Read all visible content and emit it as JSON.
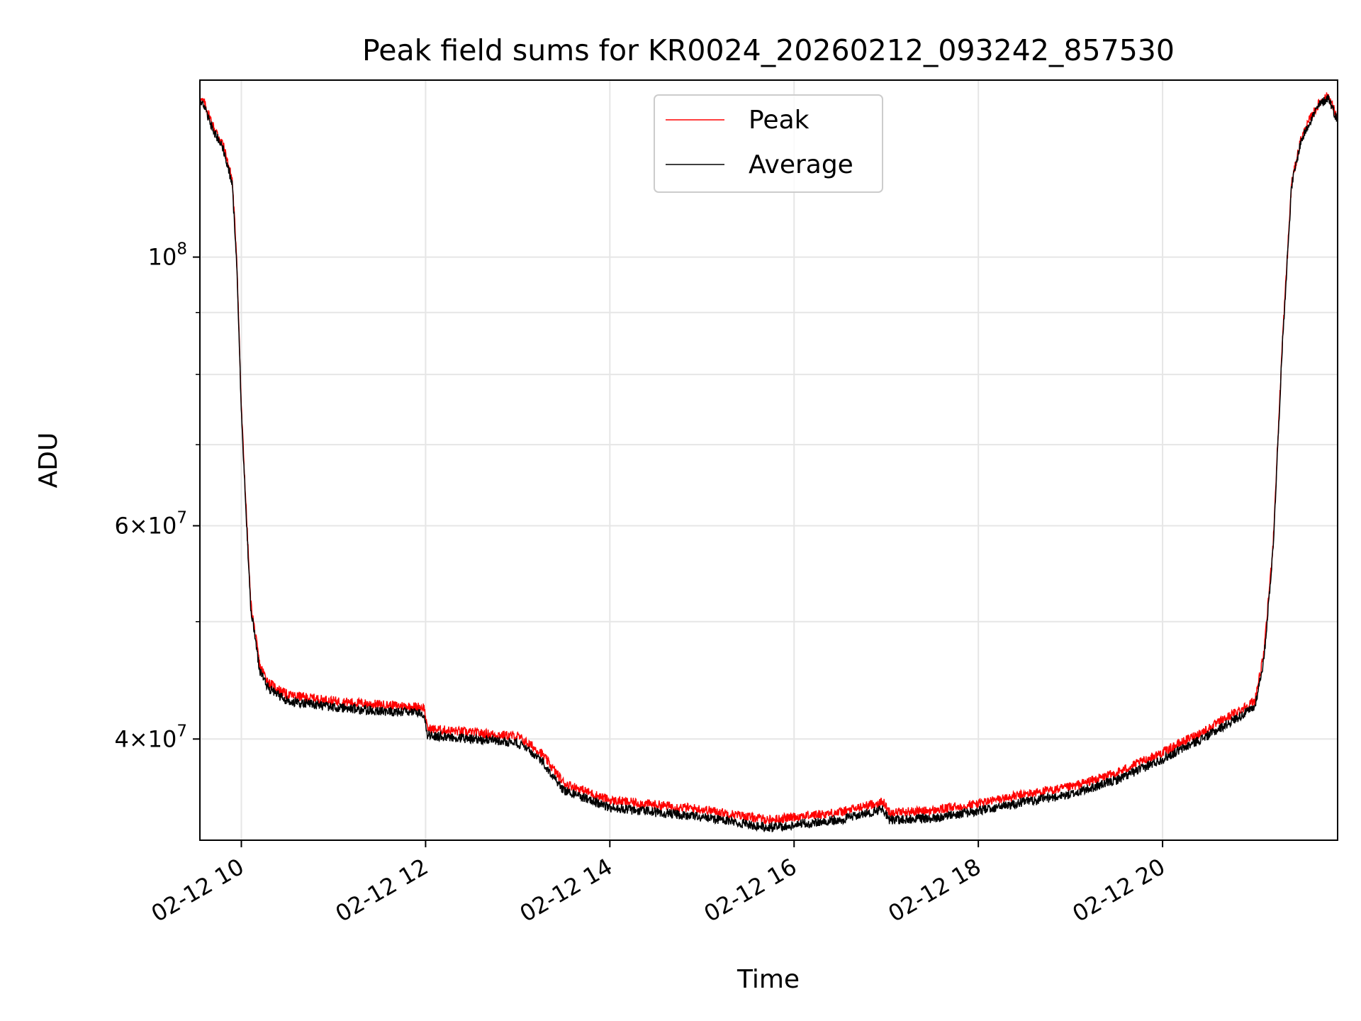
{
  "chart_data": {
    "type": "line",
    "title": "Peak field sums for KR0024_20260212_093242_857530",
    "xlabel": "Time",
    "ylabel": "ADU",
    "yscale": "log",
    "grid": true,
    "legend_position": "top-center",
    "xlim": [
      "2026-02-12 09:33",
      "2026-02-12 21:54"
    ],
    "ylim": [
      33000000,
      140000000
    ],
    "x_ticks": [
      "02-12 10",
      "02-12 12",
      "02-12 14",
      "02-12 16",
      "02-12 18",
      "02-12 20"
    ],
    "y_ticks": [
      {
        "value": 100000000,
        "base": "10",
        "exp": "8",
        "label": "10^8"
      },
      {
        "value": 60000000,
        "coef": "6",
        "base": "10",
        "exp": "7",
        "label": "6×10^7"
      },
      {
        "value": 40000000,
        "coef": "4",
        "base": "10",
        "exp": "7",
        "label": "4×10^7"
      }
    ],
    "y_minor_ticks": [
      50000000,
      70000000,
      80000000,
      90000000
    ],
    "x": [
      "2026-02-12 09:33",
      "2026-02-12 09:36",
      "2026-02-12 09:42",
      "2026-02-12 09:48",
      "2026-02-12 09:54",
      "2026-02-12 09:57",
      "2026-02-12 10:00",
      "2026-02-12 10:06",
      "2026-02-12 10:12",
      "2026-02-12 10:18",
      "2026-02-12 10:24",
      "2026-02-12 10:30",
      "2026-02-12 11:00",
      "2026-02-12 11:30",
      "2026-02-12 11:59",
      "2026-02-12 12:01",
      "2026-02-12 12:30",
      "2026-02-12 13:00",
      "2026-02-12 13:15",
      "2026-02-12 13:30",
      "2026-02-12 14:00",
      "2026-02-12 14:30",
      "2026-02-12 15:00",
      "2026-02-12 15:30",
      "2026-02-12 15:45",
      "2026-02-12 16:00",
      "2026-02-12 16:30",
      "2026-02-12 16:58",
      "2026-02-12 17:02",
      "2026-02-12 17:30",
      "2026-02-12 18:00",
      "2026-02-12 18:30",
      "2026-02-12 19:00",
      "2026-02-12 19:30",
      "2026-02-12 20:00",
      "2026-02-12 20:30",
      "2026-02-12 21:00",
      "2026-02-12 21:06",
      "2026-02-12 21:12",
      "2026-02-12 21:18",
      "2026-02-12 21:24",
      "2026-02-12 21:30",
      "2026-02-12 21:36",
      "2026-02-12 21:42",
      "2026-02-12 21:48",
      "2026-02-12 21:54"
    ],
    "series": [
      {
        "name": "Peak",
        "color": "#ff0000",
        "values": [
          135000000,
          134000000,
          128000000,
          124000000,
          116000000,
          100000000,
          75000000,
          52000000,
          46000000,
          44500000,
          44000000,
          43500000,
          43000000,
          42700000,
          42500000,
          40800000,
          40500000,
          40200000,
          39000000,
          36800000,
          35600000,
          35300000,
          35000000,
          34500000,
          34300000,
          34500000,
          34800000,
          35500000,
          34800000,
          34900000,
          35400000,
          36000000,
          36500000,
          37500000,
          39000000,
          40800000,
          43000000,
          47000000,
          58000000,
          85000000,
          115000000,
          125000000,
          130000000,
          134000000,
          136000000,
          130000000
        ]
      },
      {
        "name": "Average",
        "color": "#000000",
        "values": [
          134000000,
          133000000,
          127000000,
          123000000,
          115000000,
          99000000,
          74500000,
          51500000,
          45500000,
          44000000,
          43500000,
          43000000,
          42500000,
          42200000,
          42000000,
          40300000,
          40000000,
          39700000,
          38500000,
          36300000,
          35100000,
          34800000,
          34500000,
          34000000,
          33800000,
          34000000,
          34300000,
          35000000,
          34300000,
          34400000,
          34900000,
          35500000,
          36000000,
          37000000,
          38500000,
          40300000,
          42500000,
          46500000,
          57500000,
          84500000,
          114500000,
          124500000,
          129500000,
          133500000,
          135500000,
          129500000
        ]
      }
    ]
  }
}
